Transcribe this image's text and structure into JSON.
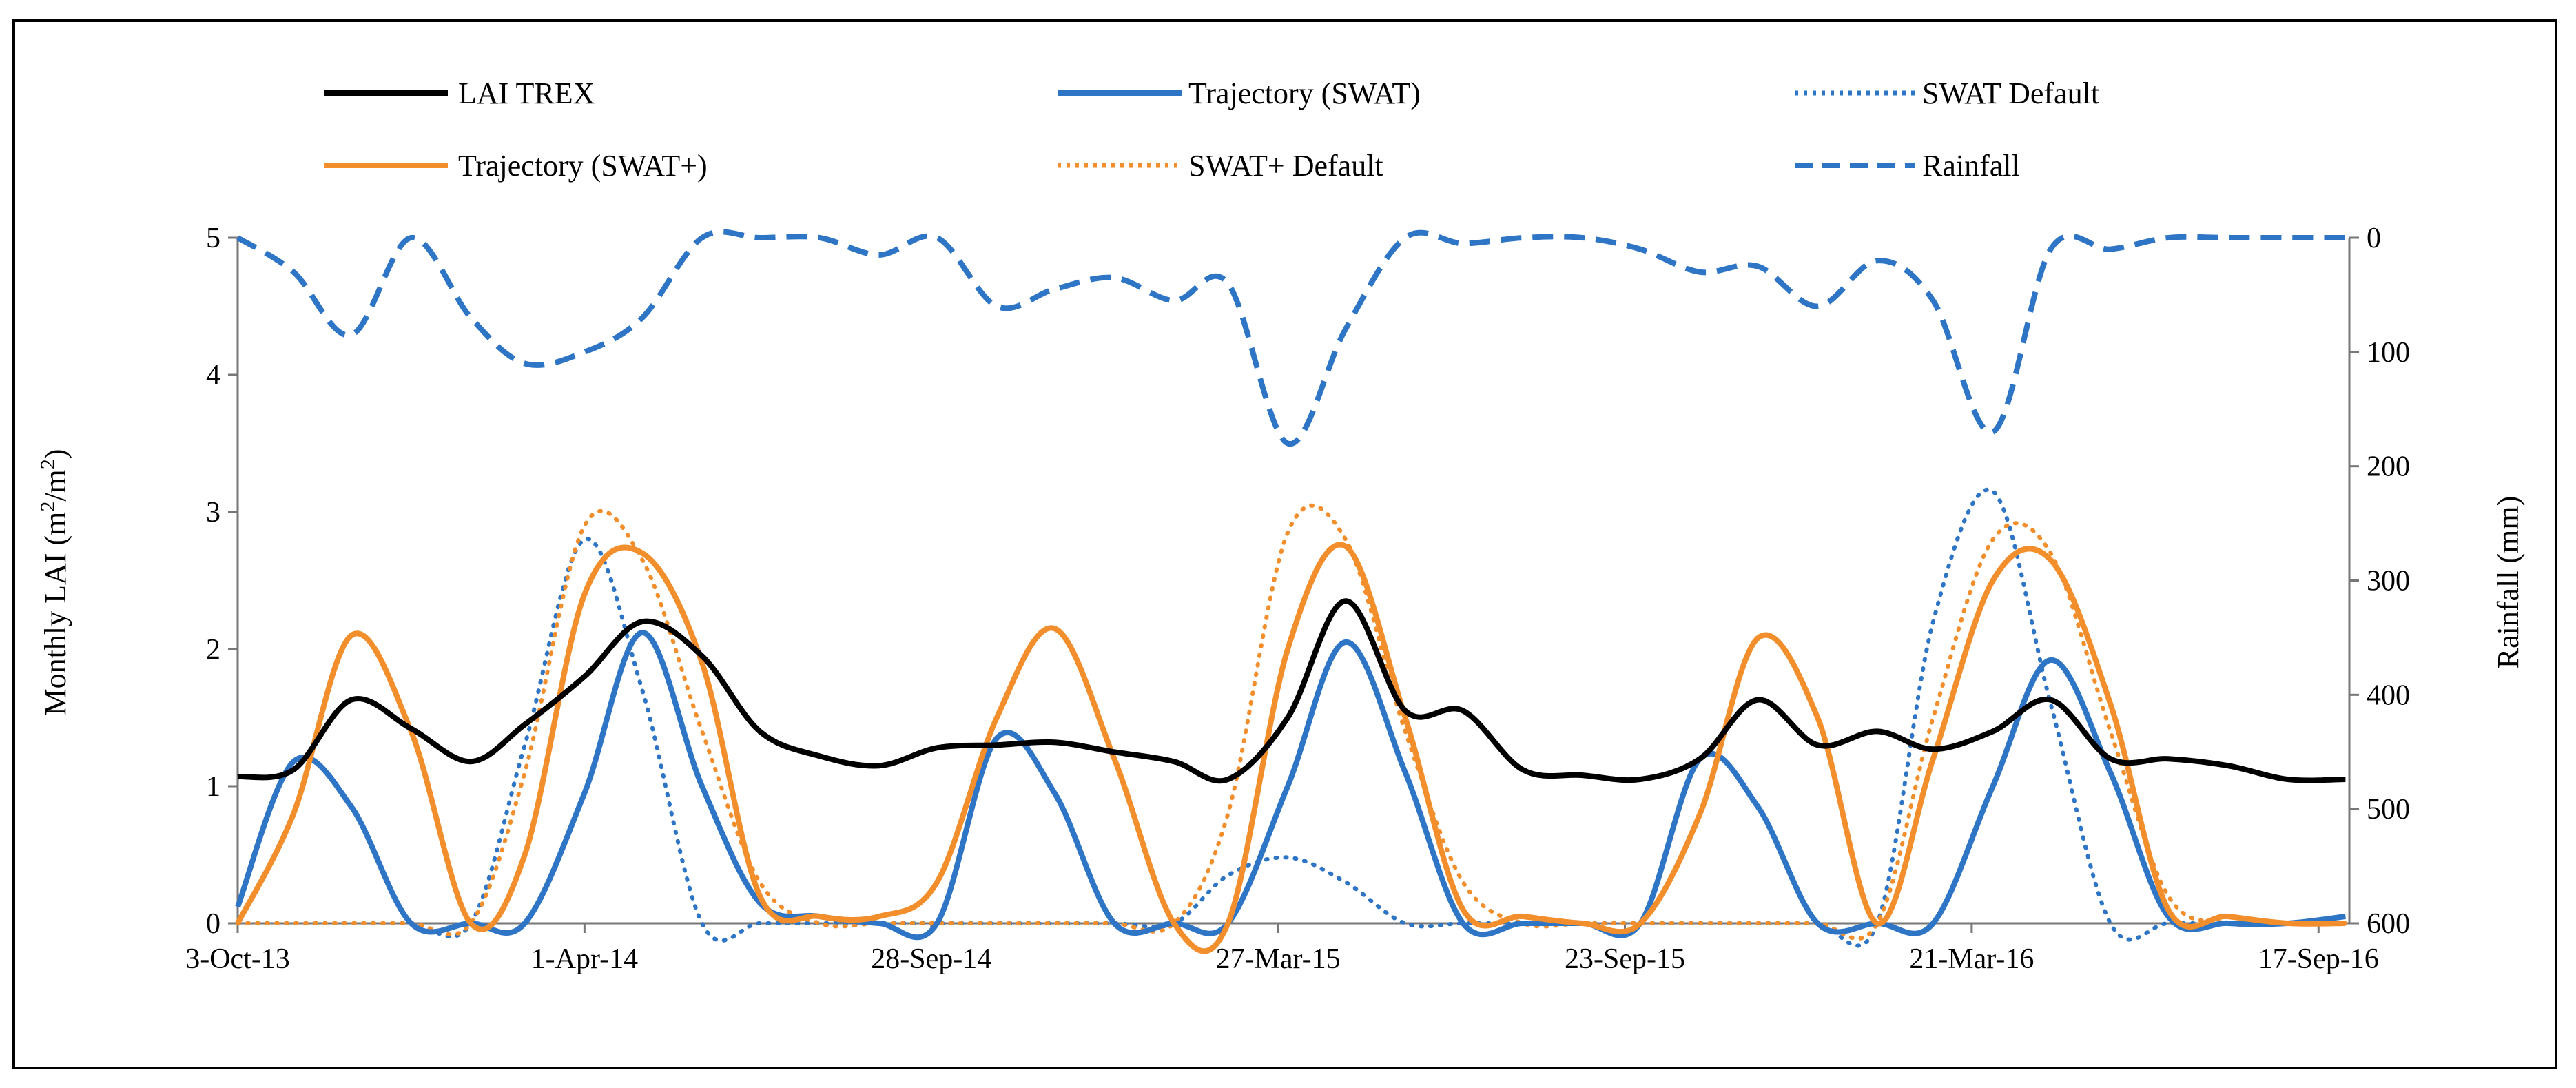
{
  "chart_data": {
    "type": "line",
    "legend_placement": "top",
    "grid": false,
    "x_tick_labels": [
      "3-Oct-13",
      "1-Apr-14",
      "28-Sep-14",
      "27-Mar-15",
      "23-Sep-15",
      "21-Mar-16",
      "17-Sep-16"
    ],
    "x_tick_dates": [
      "2013-10-03",
      "2014-04-01",
      "2014-09-28",
      "2015-03-27",
      "2015-09-23",
      "2016-03-21",
      "2016-09-17"
    ],
    "xlim": [
      "2013-10-03",
      "2016-10-03"
    ],
    "y_left": {
      "label": "Monthly LAI (m²/m²)",
      "label_main": "Monthly LAI (m",
      "label_sup1": "2",
      "label_mid": "/m",
      "label_sup2": "2",
      "label_end": ")",
      "ylim": [
        0,
        5
      ],
      "ticks": [
        "0",
        "1",
        "2",
        "3",
        "4",
        "5"
      ]
    },
    "y_right": {
      "label": "Rainfall (mm)",
      "ylim": [
        0,
        600
      ],
      "inverted": true,
      "ticks": [
        "0",
        "100",
        "200",
        "300",
        "400",
        "500",
        "600"
      ]
    },
    "series": [
      {
        "name": "LAI TREX",
        "axis": "left",
        "color": "#000000",
        "dash": "solid",
        "points": [
          [
            "2013-10-03",
            1.07
          ],
          [
            "2013-11-01",
            1.12
          ],
          [
            "2013-12-01",
            1.63
          ],
          [
            "2014-01-01",
            1.42
          ],
          [
            "2014-02-01",
            1.18
          ],
          [
            "2014-03-01",
            1.45
          ],
          [
            "2014-04-01",
            1.8
          ],
          [
            "2014-05-01",
            2.2
          ],
          [
            "2014-06-01",
            1.95
          ],
          [
            "2014-07-01",
            1.4
          ],
          [
            "2014-08-01",
            1.22
          ],
          [
            "2014-09-01",
            1.15
          ],
          [
            "2014-10-01",
            1.28
          ],
          [
            "2014-11-01",
            1.3
          ],
          [
            "2014-12-01",
            1.32
          ],
          [
            "2015-01-01",
            1.25
          ],
          [
            "2015-02-01",
            1.18
          ],
          [
            "2015-03-01",
            1.05
          ],
          [
            "2015-04-01",
            1.5
          ],
          [
            "2015-05-01",
            2.35
          ],
          [
            "2015-06-01",
            1.55
          ],
          [
            "2015-07-01",
            1.55
          ],
          [
            "2015-08-01",
            1.12
          ],
          [
            "2015-09-01",
            1.08
          ],
          [
            "2015-10-01",
            1.05
          ],
          [
            "2015-11-01",
            1.2
          ],
          [
            "2015-12-01",
            1.63
          ],
          [
            "2016-01-01",
            1.3
          ],
          [
            "2016-02-01",
            1.4
          ],
          [
            "2016-03-01",
            1.27
          ],
          [
            "2016-04-01",
            1.4
          ],
          [
            "2016-05-01",
            1.63
          ],
          [
            "2016-06-01",
            1.2
          ],
          [
            "2016-07-01",
            1.2
          ],
          [
            "2016-08-01",
            1.15
          ],
          [
            "2016-09-01",
            1.05
          ],
          [
            "2016-10-01",
            1.05
          ]
        ]
      },
      {
        "name": "Trajectory (SWAT)",
        "axis": "left",
        "color": "#2E75C6",
        "dash": "solid",
        "points": [
          [
            "2013-10-03",
            0.12
          ],
          [
            "2013-11-01",
            1.18
          ],
          [
            "2013-12-01",
            0.85
          ],
          [
            "2014-01-01",
            0.0
          ],
          [
            "2014-02-01",
            0.0
          ],
          [
            "2014-03-01",
            0.0
          ],
          [
            "2014-04-01",
            0.95
          ],
          [
            "2014-05-01",
            2.12
          ],
          [
            "2014-06-01",
            1.0
          ],
          [
            "2014-07-01",
            0.15
          ],
          [
            "2014-08-01",
            0.05
          ],
          [
            "2014-09-01",
            0.0
          ],
          [
            "2014-10-01",
            0.0
          ],
          [
            "2014-11-01",
            1.35
          ],
          [
            "2014-12-01",
            0.95
          ],
          [
            "2015-01-01",
            0.0
          ],
          [
            "2015-02-01",
            0.0
          ],
          [
            "2015-03-01",
            0.0
          ],
          [
            "2015-04-01",
            1.0
          ],
          [
            "2015-05-01",
            2.05
          ],
          [
            "2015-06-01",
            1.1
          ],
          [
            "2015-07-01",
            0.0
          ],
          [
            "2015-08-01",
            0.0
          ],
          [
            "2015-09-01",
            0.0
          ],
          [
            "2015-10-01",
            0.0
          ],
          [
            "2015-11-01",
            1.2
          ],
          [
            "2015-12-01",
            0.85
          ],
          [
            "2016-01-01",
            0.0
          ],
          [
            "2016-02-01",
            0.0
          ],
          [
            "2016-03-01",
            0.0
          ],
          [
            "2016-04-01",
            1.0
          ],
          [
            "2016-05-01",
            1.92
          ],
          [
            "2016-06-01",
            1.1
          ],
          [
            "2016-07-01",
            0.05
          ],
          [
            "2016-08-01",
            0.0
          ],
          [
            "2016-09-01",
            0.0
          ],
          [
            "2016-10-01",
            0.05
          ]
        ]
      },
      {
        "name": "SWAT Default",
        "axis": "left",
        "color": "#2E75C6",
        "dash": "dotted",
        "points": [
          [
            "2013-10-03",
            0.0
          ],
          [
            "2013-11-01",
            0.0
          ],
          [
            "2013-12-01",
            0.0
          ],
          [
            "2014-01-01",
            0.0
          ],
          [
            "2014-02-01",
            0.0
          ],
          [
            "2014-03-01",
            1.3
          ],
          [
            "2014-04-01",
            2.8
          ],
          [
            "2014-05-01",
            1.7
          ],
          [
            "2014-06-01",
            0.0
          ],
          [
            "2014-07-01",
            0.0
          ],
          [
            "2014-08-01",
            0.0
          ],
          [
            "2014-09-01",
            0.0
          ],
          [
            "2014-10-01",
            0.0
          ],
          [
            "2014-11-01",
            0.0
          ],
          [
            "2014-12-01",
            0.0
          ],
          [
            "2015-01-01",
            0.0
          ],
          [
            "2015-02-01",
            0.0
          ],
          [
            "2015-03-01",
            0.35
          ],
          [
            "2015-04-01",
            0.48
          ],
          [
            "2015-05-01",
            0.3
          ],
          [
            "2015-06-01",
            0.0
          ],
          [
            "2015-07-01",
            0.0
          ],
          [
            "2015-08-01",
            0.0
          ],
          [
            "2015-09-01",
            0.0
          ],
          [
            "2015-10-01",
            0.0
          ],
          [
            "2015-11-01",
            0.0
          ],
          [
            "2015-12-01",
            0.0
          ],
          [
            "2016-01-01",
            0.0
          ],
          [
            "2016-02-01",
            0.0
          ],
          [
            "2016-03-01",
            2.2
          ],
          [
            "2016-04-01",
            3.15
          ],
          [
            "2016-05-01",
            1.6
          ],
          [
            "2016-06-01",
            0.0
          ],
          [
            "2016-07-01",
            0.0
          ],
          [
            "2016-08-01",
            0.0
          ],
          [
            "2016-09-01",
            0.0
          ],
          [
            "2016-10-01",
            0.0
          ]
        ]
      },
      {
        "name": "Trajectory (SWAT+)",
        "axis": "left",
        "color": "#F28E2B",
        "dash": "solid",
        "points": [
          [
            "2013-10-03",
            0.0
          ],
          [
            "2013-11-01",
            0.8
          ],
          [
            "2013-12-01",
            2.1
          ],
          [
            "2014-01-01",
            1.4
          ],
          [
            "2014-02-01",
            0.0
          ],
          [
            "2014-03-01",
            0.5
          ],
          [
            "2014-04-01",
            2.4
          ],
          [
            "2014-05-01",
            2.7
          ],
          [
            "2014-06-01",
            1.9
          ],
          [
            "2014-07-01",
            0.2
          ],
          [
            "2014-08-01",
            0.05
          ],
          [
            "2014-09-01",
            0.05
          ],
          [
            "2014-10-01",
            0.3
          ],
          [
            "2014-11-01",
            1.5
          ],
          [
            "2014-12-01",
            2.15
          ],
          [
            "2015-01-01",
            1.2
          ],
          [
            "2015-02-01",
            0.0
          ],
          [
            "2015-03-01",
            0.0
          ],
          [
            "2015-04-01",
            2.0
          ],
          [
            "2015-05-01",
            2.75
          ],
          [
            "2015-06-01",
            1.5
          ],
          [
            "2015-07-01",
            0.1
          ],
          [
            "2015-08-01",
            0.05
          ],
          [
            "2015-09-01",
            0.0
          ],
          [
            "2015-10-01",
            0.0
          ],
          [
            "2015-11-01",
            0.8
          ],
          [
            "2015-12-01",
            2.08
          ],
          [
            "2016-01-01",
            1.5
          ],
          [
            "2016-02-01",
            0.0
          ],
          [
            "2016-03-01",
            1.2
          ],
          [
            "2016-04-01",
            2.5
          ],
          [
            "2016-05-01",
            2.65
          ],
          [
            "2016-06-01",
            1.6
          ],
          [
            "2016-07-01",
            0.1
          ],
          [
            "2016-08-01",
            0.05
          ],
          [
            "2016-09-01",
            0.0
          ],
          [
            "2016-10-01",
            0.0
          ]
        ]
      },
      {
        "name": "SWAT+ Default",
        "axis": "left",
        "color": "#F28E2B",
        "dash": "dotted",
        "points": [
          [
            "2013-10-03",
            0.0
          ],
          [
            "2013-11-01",
            0.0
          ],
          [
            "2013-12-01",
            0.0
          ],
          [
            "2014-01-01",
            0.0
          ],
          [
            "2014-02-01",
            0.0
          ],
          [
            "2014-03-01",
            1.1
          ],
          [
            "2014-04-01",
            2.9
          ],
          [
            "2014-05-01",
            2.65
          ],
          [
            "2014-06-01",
            1.4
          ],
          [
            "2014-07-01",
            0.3
          ],
          [
            "2014-08-01",
            0.0
          ],
          [
            "2014-09-01",
            0.0
          ],
          [
            "2014-10-01",
            0.0
          ],
          [
            "2014-11-01",
            0.0
          ],
          [
            "2014-12-01",
            0.0
          ],
          [
            "2015-01-01",
            0.0
          ],
          [
            "2015-02-01",
            0.0
          ],
          [
            "2015-03-01",
            0.8
          ],
          [
            "2015-04-01",
            2.85
          ],
          [
            "2015-05-01",
            2.8
          ],
          [
            "2015-06-01",
            1.4
          ],
          [
            "2015-07-01",
            0.3
          ],
          [
            "2015-08-01",
            0.0
          ],
          [
            "2015-09-01",
            0.0
          ],
          [
            "2015-10-01",
            0.0
          ],
          [
            "2015-11-01",
            0.0
          ],
          [
            "2015-12-01",
            0.0
          ],
          [
            "2016-01-01",
            0.0
          ],
          [
            "2016-02-01",
            0.0
          ],
          [
            "2016-03-01",
            1.5
          ],
          [
            "2016-04-01",
            2.8
          ],
          [
            "2016-05-01",
            2.7
          ],
          [
            "2016-06-01",
            1.4
          ],
          [
            "2016-07-01",
            0.2
          ],
          [
            "2016-08-01",
            0.0
          ],
          [
            "2016-09-01",
            0.0
          ],
          [
            "2016-10-01",
            0.0
          ]
        ]
      },
      {
        "name": "Rainfall",
        "axis": "right",
        "color": "#2E75C6",
        "dash": "dashed",
        "points": [
          [
            "2013-10-03",
            0
          ],
          [
            "2013-11-01",
            30
          ],
          [
            "2013-12-01",
            85
          ],
          [
            "2014-01-01",
            0
          ],
          [
            "2014-02-01",
            70
          ],
          [
            "2014-03-01",
            110
          ],
          [
            "2014-04-01",
            100
          ],
          [
            "2014-05-01",
            70
          ],
          [
            "2014-06-01",
            0
          ],
          [
            "2014-07-01",
            0
          ],
          [
            "2014-08-01",
            0
          ],
          [
            "2014-09-01",
            15
          ],
          [
            "2014-10-01",
            0
          ],
          [
            "2014-11-01",
            60
          ],
          [
            "2014-12-01",
            45
          ],
          [
            "2015-01-01",
            35
          ],
          [
            "2015-02-01",
            55
          ],
          [
            "2015-03-01",
            40
          ],
          [
            "2015-04-01",
            180
          ],
          [
            "2015-05-01",
            80
          ],
          [
            "2015-06-01",
            0
          ],
          [
            "2015-07-01",
            5
          ],
          [
            "2015-08-01",
            0
          ],
          [
            "2015-09-01",
            0
          ],
          [
            "2015-10-01",
            10
          ],
          [
            "2015-11-01",
            30
          ],
          [
            "2015-12-01",
            25
          ],
          [
            "2016-01-01",
            60
          ],
          [
            "2016-02-01",
            20
          ],
          [
            "2016-03-01",
            55
          ],
          [
            "2016-04-01",
            170
          ],
          [
            "2016-05-01",
            10
          ],
          [
            "2016-06-01",
            10
          ],
          [
            "2016-07-01",
            0
          ],
          [
            "2016-08-01",
            0
          ],
          [
            "2016-09-01",
            0
          ],
          [
            "2016-10-01",
            0
          ]
        ]
      }
    ]
  }
}
